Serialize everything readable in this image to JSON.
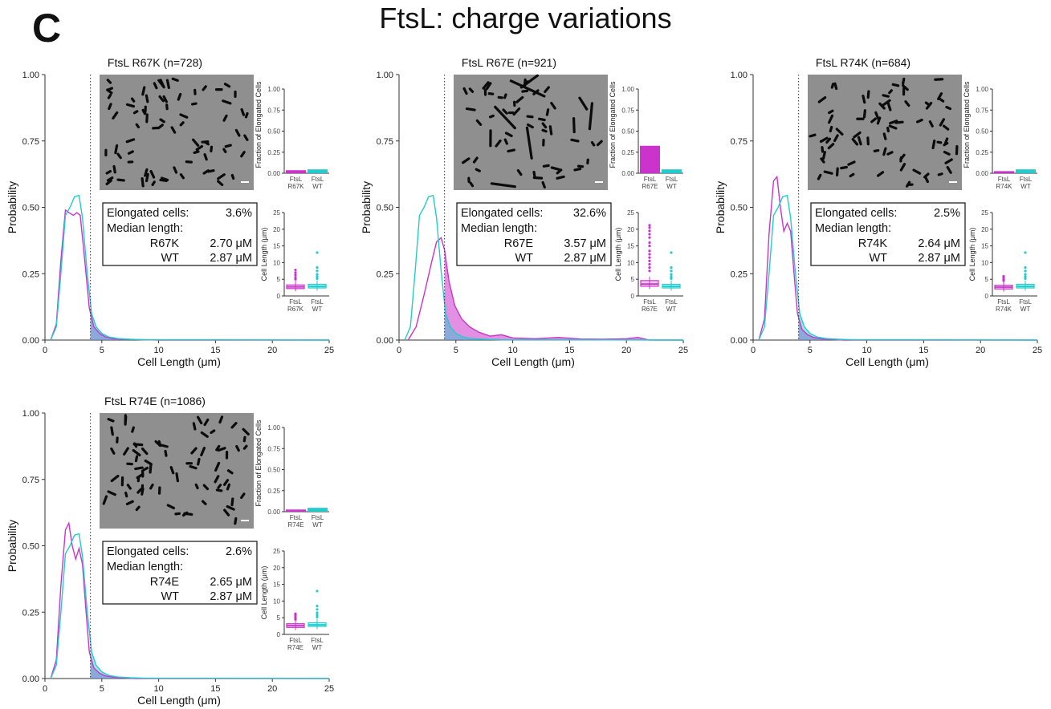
{
  "figure": {
    "panel_letter": "C",
    "title": "FtsL: charge variations"
  },
  "colors": {
    "mutant": "#cc33cc",
    "wt": "#22cccc",
    "overlap": "#9070d8",
    "micrograph": "#8f8f8f"
  },
  "chart_data": [
    {
      "type": "area",
      "title": "FtsL R67K (n=728)",
      "xlabel": "Cell Length (μm)",
      "ylabel": "Probability",
      "xlim": [
        0,
        25
      ],
      "ylim": [
        0,
        1
      ],
      "xticks": [
        "0",
        "5",
        "10",
        "15",
        "20",
        "25"
      ],
      "yticks": [
        "0.00",
        "0.25",
        "0.50",
        "0.75",
        "1.00"
      ],
      "threshold": 4,
      "series": [
        {
          "name": "R67K",
          "x": [
            0.5,
            1.0,
            1.4,
            1.8,
            2.1,
            2.5,
            2.8,
            3.1,
            3.5,
            3.9,
            4.3,
            4.8,
            5.3,
            6.0,
            7.0,
            8.0,
            10.0,
            25.0
          ],
          "y": [
            0.0,
            0.06,
            0.3,
            0.49,
            0.48,
            0.47,
            0.48,
            0.47,
            0.3,
            0.12,
            0.05,
            0.025,
            0.012,
            0.005,
            0.003,
            0.002,
            0.0,
            0.0
          ]
        },
        {
          "name": "WT",
          "x": [
            0.5,
            1.0,
            1.4,
            1.8,
            2.2,
            2.6,
            3.0,
            3.3,
            3.7,
            4.1,
            4.5,
            5.0,
            5.6,
            6.4,
            7.5,
            9.0,
            13.0,
            25.0
          ],
          "y": [
            0.0,
            0.05,
            0.25,
            0.47,
            0.5,
            0.54,
            0.545,
            0.46,
            0.26,
            0.1,
            0.05,
            0.025,
            0.012,
            0.006,
            0.003,
            0.001,
            0.001,
            0.0
          ]
        }
      ],
      "stats": {
        "elongated_label": "Elongated cells:",
        "elongated_value": "3.6%",
        "median_label": "Median length:",
        "mutant_name": "R67K",
        "mutant_median": "2.70 μM",
        "wt_name": "WT",
        "wt_median": "2.87 μM"
      },
      "fraction_inset": {
        "ylabel": "Fraction of Elongated Cells",
        "ylim": [
          0,
          1
        ],
        "yticks": [
          "0.00",
          "0.25",
          "0.50",
          "0.75",
          "1.00"
        ],
        "categories": [
          "FtsL R67K",
          "FtsL WT"
        ],
        "values": [
          0.036,
          0.046
        ]
      },
      "box_inset": {
        "ylabel": "Cell Length (μm)",
        "ylim": [
          0,
          25
        ],
        "yticks": [
          "0",
          "5",
          "10",
          "15",
          "20",
          "25"
        ],
        "categories": [
          "FtsL R67K",
          "FtsL WT"
        ],
        "boxes": [
          {
            "q1": 2.2,
            "median": 2.7,
            "q3": 3.3,
            "outliers": [
              5.0,
              5.6,
              6.3,
              7.0,
              7.8
            ]
          },
          {
            "q1": 2.4,
            "median": 2.87,
            "q3": 3.5,
            "outliers": [
              5.2,
              5.8,
              6.5,
              7.5,
              8.5,
              13.0
            ]
          }
        ]
      }
    },
    {
      "type": "area",
      "title": "FtsL R67E (n=921)",
      "xlabel": "Cell Length (μm)",
      "ylabel": "Probability",
      "xlim": [
        0,
        25
      ],
      "ylim": [
        0,
        1
      ],
      "xticks": [
        "0",
        "5",
        "10",
        "15",
        "20",
        "25"
      ],
      "yticks": [
        "0.00",
        "0.25",
        "0.50",
        "0.75",
        "1.00"
      ],
      "threshold": 4,
      "series": [
        {
          "name": "R67E",
          "x": [
            0.8,
            1.5,
            2.2,
            2.9,
            3.3,
            3.7,
            4.0,
            4.4,
            4.9,
            5.5,
            6.2,
            7.0,
            8.0,
            9.0,
            10.0,
            12.0,
            14.0,
            16.0,
            18.0,
            20.0,
            21.0,
            22.0,
            25.0
          ],
          "y": [
            0.0,
            0.05,
            0.17,
            0.3,
            0.37,
            0.385,
            0.34,
            0.22,
            0.13,
            0.08,
            0.05,
            0.03,
            0.015,
            0.02,
            0.008,
            0.005,
            0.01,
            0.004,
            0.003,
            0.005,
            0.01,
            0.0,
            0.0
          ]
        },
        {
          "name": "WT",
          "x": [
            0.5,
            1.0,
            1.4,
            1.8,
            2.2,
            2.6,
            3.0,
            3.3,
            3.7,
            4.1,
            4.5,
            5.0,
            5.6,
            6.4,
            7.5,
            9.0,
            13.0,
            25.0
          ],
          "y": [
            0.0,
            0.05,
            0.25,
            0.47,
            0.5,
            0.54,
            0.545,
            0.46,
            0.26,
            0.1,
            0.05,
            0.025,
            0.012,
            0.006,
            0.003,
            0.001,
            0.001,
            0.0
          ]
        }
      ],
      "stats": {
        "elongated_label": "Elongated cells:",
        "elongated_value": "32.6%",
        "median_label": "Median length:",
        "mutant_name": "R67E",
        "mutant_median": "3.57 μM",
        "wt_name": "WT",
        "wt_median": "2.87 μM"
      },
      "fraction_inset": {
        "ylabel": "Fraction of Elongated Cells",
        "ylim": [
          0,
          1
        ],
        "yticks": [
          "0.00",
          "0.25",
          "0.50",
          "0.75",
          "1.00"
        ],
        "categories": [
          "FtsL R67E",
          "FtsL WT"
        ],
        "values": [
          0.326,
          0.046
        ]
      },
      "box_inset": {
        "ylabel": "Cell Length (μm)",
        "ylim": [
          0,
          25
        ],
        "yticks": [
          "0",
          "5",
          "10",
          "15",
          "20",
          "25"
        ],
        "categories": [
          "FtsL R67E",
          "FtsL WT"
        ],
        "boxes": [
          {
            "q1": 2.9,
            "median": 3.57,
            "q3": 4.6,
            "outliers": [
              7.5,
              8.5,
              9.5,
              10.5,
              11.5,
              12.5,
              13.5,
              15.0,
              16.0,
              17.5,
              18.5,
              19.5,
              20.5,
              21.2
            ]
          },
          {
            "q1": 2.4,
            "median": 2.87,
            "q3": 3.5,
            "outliers": [
              5.2,
              5.8,
              6.5,
              7.5,
              8.5,
              13.0
            ]
          }
        ]
      }
    },
    {
      "type": "area",
      "title": "FtsL R74K (n=684)",
      "xlabel": "Cell Length (μm)",
      "ylabel": "Probability",
      "xlim": [
        0,
        25
      ],
      "ylim": [
        0,
        1
      ],
      "xticks": [
        "0",
        "5",
        "10",
        "15",
        "20",
        "25"
      ],
      "yticks": [
        "0.00",
        "0.25",
        "0.50",
        "0.75",
        "1.00"
      ],
      "threshold": 4,
      "series": [
        {
          "name": "R74K",
          "x": [
            0.5,
            1.0,
            1.4,
            1.8,
            2.1,
            2.4,
            2.7,
            3.0,
            3.3,
            3.6,
            3.9,
            4.3,
            4.8,
            5.3,
            6.0,
            7.0,
            8.0,
            25.0
          ],
          "y": [
            0.0,
            0.08,
            0.4,
            0.6,
            0.615,
            0.5,
            0.41,
            0.44,
            0.41,
            0.25,
            0.1,
            0.04,
            0.02,
            0.01,
            0.005,
            0.002,
            0.0,
            0.0
          ]
        },
        {
          "name": "WT",
          "x": [
            0.5,
            1.0,
            1.4,
            1.8,
            2.2,
            2.6,
            3.0,
            3.3,
            3.7,
            4.1,
            4.5,
            5.0,
            5.6,
            6.4,
            7.5,
            9.0,
            13.0,
            25.0
          ],
          "y": [
            0.0,
            0.05,
            0.25,
            0.47,
            0.5,
            0.54,
            0.545,
            0.46,
            0.26,
            0.1,
            0.05,
            0.025,
            0.012,
            0.006,
            0.003,
            0.001,
            0.001,
            0.0
          ]
        }
      ],
      "stats": {
        "elongated_label": "Elongated cells:",
        "elongated_value": "2.5%",
        "median_label": "Median length:",
        "mutant_name": "R74K",
        "mutant_median": "2.64 μM",
        "wt_name": "WT",
        "wt_median": "2.87 μM"
      },
      "fraction_inset": {
        "ylabel": "Fraction of Elongated Cells",
        "ylim": [
          0,
          1
        ],
        "yticks": [
          "0.00",
          "0.25",
          "0.50",
          "0.75",
          "1.00"
        ],
        "categories": [
          "FtsL R74K",
          "FtsL WT"
        ],
        "values": [
          0.025,
          0.046
        ]
      },
      "box_inset": {
        "ylabel": "Cell Length (μm)",
        "ylim": [
          0,
          25
        ],
        "yticks": [
          "0",
          "5",
          "10",
          "15",
          "20",
          "25"
        ],
        "categories": [
          "FtsL R74K",
          "FtsL WT"
        ],
        "boxes": [
          {
            "q1": 2.1,
            "median": 2.64,
            "q3": 3.2,
            "outliers": [
              4.6,
              5.0,
              5.4,
              5.9
            ]
          },
          {
            "q1": 2.4,
            "median": 2.87,
            "q3": 3.5,
            "outliers": [
              5.2,
              5.8,
              6.5,
              7.5,
              8.5,
              13.0
            ]
          }
        ]
      }
    },
    {
      "type": "area",
      "title": "FtsL R74E (n=1086)",
      "xlabel": "Cell Length (μm)",
      "ylabel": "Probability",
      "xlim": [
        0,
        25
      ],
      "ylim": [
        0,
        1
      ],
      "xticks": [
        "0",
        "5",
        "10",
        "15",
        "20",
        "25"
      ],
      "yticks": [
        "0.00",
        "0.25",
        "0.50",
        "0.75",
        "1.00"
      ],
      "threshold": 4,
      "series": [
        {
          "name": "R74E",
          "x": [
            0.5,
            1.0,
            1.4,
            1.8,
            2.1,
            2.4,
            2.7,
            3.0,
            3.3,
            3.6,
            3.9,
            4.3,
            4.8,
            5.3,
            6.0,
            7.0,
            8.0,
            25.0
          ],
          "y": [
            0.0,
            0.07,
            0.35,
            0.56,
            0.585,
            0.5,
            0.45,
            0.49,
            0.43,
            0.26,
            0.1,
            0.04,
            0.02,
            0.01,
            0.005,
            0.002,
            0.0,
            0.0
          ]
        },
        {
          "name": "WT",
          "x": [
            0.5,
            1.0,
            1.4,
            1.8,
            2.2,
            2.6,
            3.0,
            3.3,
            3.7,
            4.1,
            4.5,
            5.0,
            5.6,
            6.4,
            7.5,
            9.0,
            13.0,
            25.0
          ],
          "y": [
            0.0,
            0.05,
            0.25,
            0.47,
            0.5,
            0.54,
            0.545,
            0.46,
            0.26,
            0.1,
            0.05,
            0.025,
            0.012,
            0.006,
            0.003,
            0.001,
            0.001,
            0.0
          ]
        }
      ],
      "stats": {
        "elongated_label": "Elongated cells:",
        "elongated_value": "2.6%",
        "median_label": "Median length:",
        "mutant_name": "R74E",
        "mutant_median": "2.65 μM",
        "wt_name": "WT",
        "wt_median": "2.87 μM"
      },
      "fraction_inset": {
        "ylabel": "Fraction of Elongated Cells",
        "ylim": [
          0,
          1
        ],
        "yticks": [
          "0.00",
          "0.25",
          "0.50",
          "0.75",
          "1.00"
        ],
        "categories": [
          "FtsL R74E",
          "FtsL WT"
        ],
        "values": [
          0.026,
          0.046
        ]
      },
      "box_inset": {
        "ylabel": "Cell Length (μm)",
        "ylim": [
          0,
          25
        ],
        "yticks": [
          "0",
          "5",
          "10",
          "15",
          "20",
          "25"
        ],
        "categories": [
          "FtsL R74E",
          "FtsL WT"
        ],
        "boxes": [
          {
            "q1": 2.1,
            "median": 2.65,
            "q3": 3.2,
            "outliers": [
              4.5,
              4.9,
              5.3,
              5.8,
              6.2
            ]
          },
          {
            "q1": 2.4,
            "median": 2.87,
            "q3": 3.5,
            "outliers": [
              5.2,
              5.8,
              6.5,
              7.5,
              8.5,
              13.0
            ]
          }
        ]
      }
    }
  ]
}
